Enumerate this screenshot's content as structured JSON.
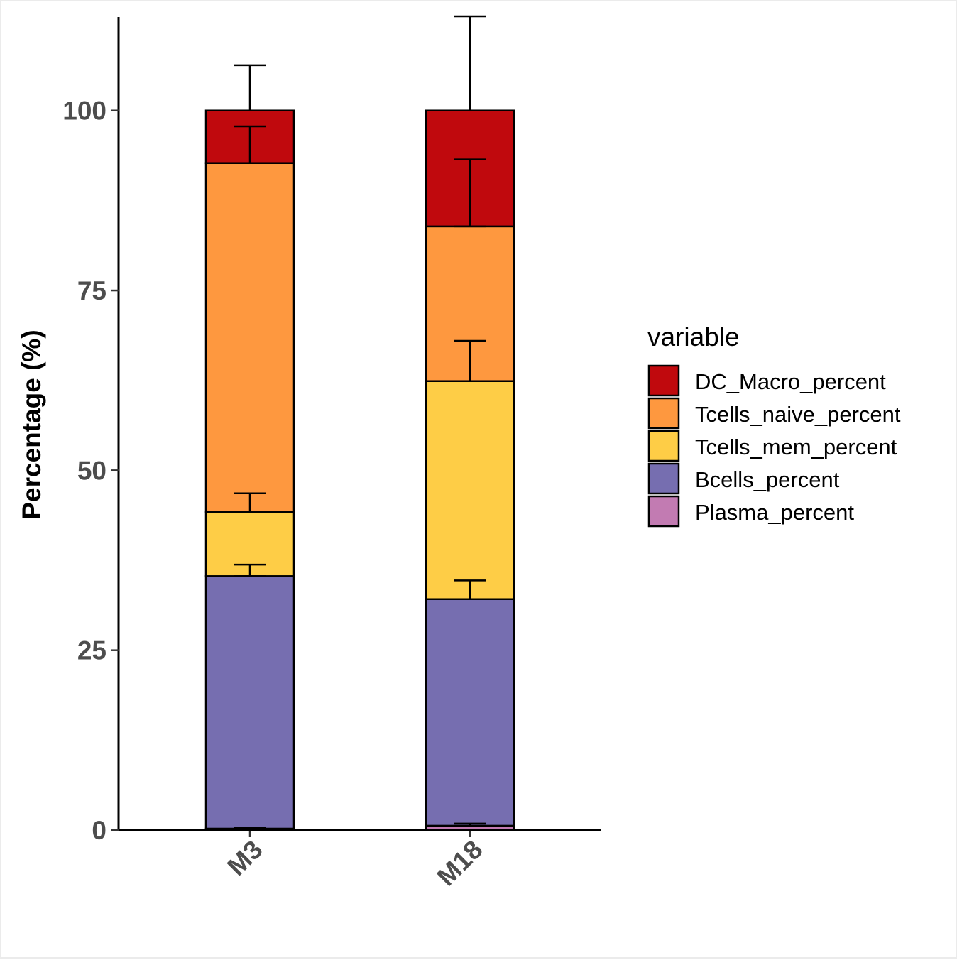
{
  "chart_data": {
    "type": "bar",
    "stacked": true,
    "title": "",
    "xlabel": "",
    "ylabel": "Percentage (%)",
    "ylim": [
      0,
      113
    ],
    "yticks": [
      0,
      25,
      50,
      75,
      100
    ],
    "ytick_labels": [
      "0",
      "25",
      "50",
      "75",
      "100"
    ],
    "grid": false,
    "legend_position": "right",
    "legend_title": "variable",
    "categories": [
      "M3",
      "M18"
    ],
    "series": [
      {
        "name": "Plasma_percent",
        "color": "#c27bb2",
        "values": [
          0.2,
          0.6
        ],
        "error": [
          0.1,
          0.3
        ]
      },
      {
        "name": "Bcells_percent",
        "color": "#766eb0",
        "values": [
          35.1,
          31.5
        ],
        "error": [
          1.6,
          2.6
        ]
      },
      {
        "name": "Tcells_mem_percent",
        "color": "#fecd46",
        "values": [
          8.9,
          30.3
        ],
        "error": [
          2.6,
          5.6
        ]
      },
      {
        "name": "Tcells_naive_percent",
        "color": "#fe983f",
        "values": [
          48.5,
          21.5
        ],
        "error": [
          5.1,
          9.3
        ]
      },
      {
        "name": "DC_Macro_percent",
        "color": "#c0090d",
        "values": [
          7.3,
          16.1
        ],
        "error": [
          6.3,
          13.1
        ]
      }
    ]
  }
}
